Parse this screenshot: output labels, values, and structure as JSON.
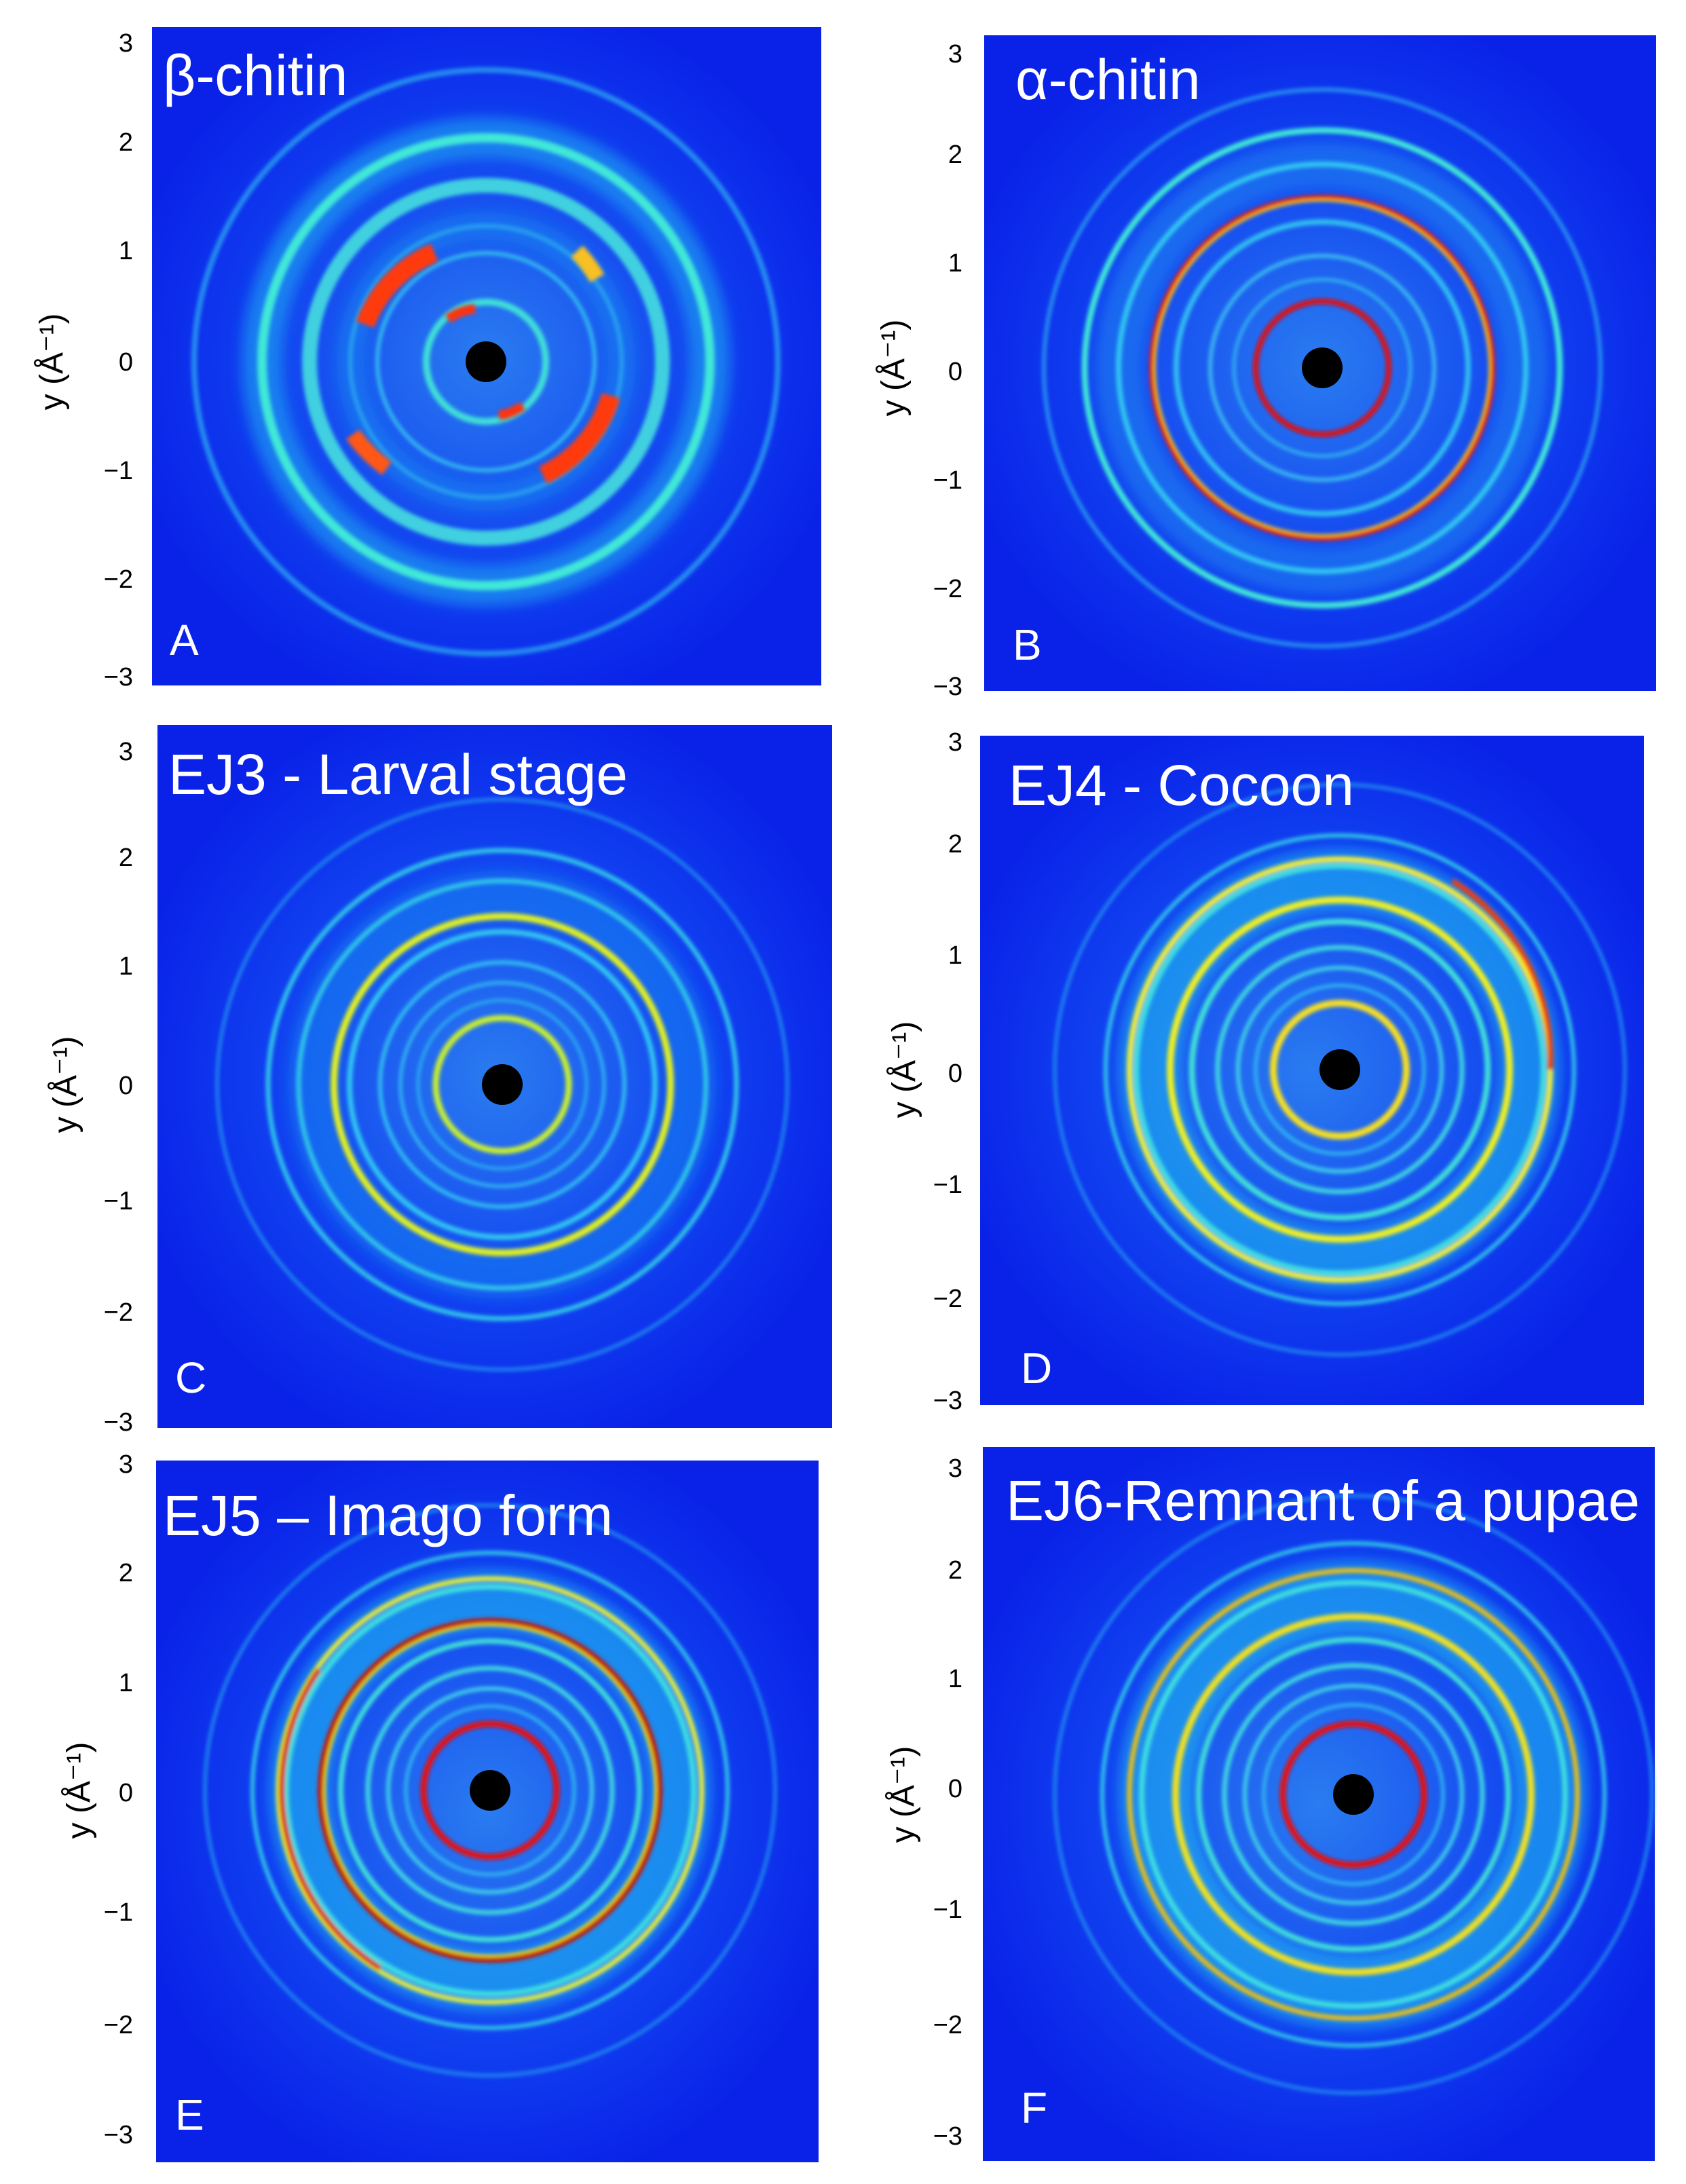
{
  "figure": {
    "panels": [
      {
        "letter": "A",
        "title": "β-chitin",
        "ylabel": "y (Å⁻¹)",
        "yticks": [
          "3",
          "2",
          "1",
          "0",
          "−1",
          "−2",
          "−3"
        ],
        "rings": [
          {
            "r_inv_A": 0.6,
            "color": "#ff3a10"
          },
          {
            "r_inv_A": 1.2,
            "color": "#ff4a10"
          },
          {
            "r_inv_A": 1.65,
            "color": "#40e8d8"
          }
        ]
      },
      {
        "letter": "B",
        "title": "α-chitin",
        "ylabel": "y (Å⁻¹)",
        "yticks": [
          "3",
          "2",
          "1",
          "0",
          "−1",
          "−2",
          "−3"
        ],
        "rings": [
          {
            "r_inv_A": 0.6,
            "color": "#e01010"
          },
          {
            "r_inv_A": 1.3,
            "color": "#e81818"
          },
          {
            "r_inv_A": 1.85,
            "color": "#40e8d8"
          }
        ]
      },
      {
        "letter": "C",
        "title": "EJ3 - Larval stage",
        "ylabel": "y (Å⁻¹)",
        "yticks": [
          "3",
          "2",
          "1",
          "0",
          "−1",
          "−2",
          "−3"
        ],
        "rings": [
          {
            "r_inv_A": 0.6,
            "color": "#c8f030"
          },
          {
            "r_inv_A": 1.3,
            "color": "#e0f020"
          },
          {
            "r_inv_A": 1.8,
            "color": "#30c8e8"
          }
        ]
      },
      {
        "letter": "D",
        "title": "EJ4 - Cocoon",
        "ylabel": "y (Å⁻¹)",
        "yticks": [
          "3",
          "2",
          "1",
          "0",
          "−1",
          "−2",
          "−3"
        ],
        "rings": [
          {
            "r_inv_A": 0.6,
            "color": "#f8e020"
          },
          {
            "r_inv_A": 1.3,
            "color": "#f0f020"
          },
          {
            "r_inv_A": 1.8,
            "color": "#f04010"
          }
        ]
      },
      {
        "letter": "E",
        "title": "EJ5 – Imago form",
        "ylabel": "y (Å⁻¹)",
        "yticks": [
          "3",
          "2",
          "1",
          "0",
          "−1",
          "−2",
          "−3"
        ],
        "rings": [
          {
            "r_inv_A": 0.6,
            "color": "#e81010"
          },
          {
            "r_inv_A": 1.3,
            "color": "#c00808"
          },
          {
            "r_inv_A": 1.8,
            "color": "#d81010"
          }
        ]
      },
      {
        "letter": "F",
        "title": "EJ6-Remnant of a pupae",
        "ylabel": "y (Å⁻¹)",
        "yticks": [
          "3",
          "2",
          "1",
          "0",
          "−1",
          "−2",
          "−3"
        ],
        "rings": [
          {
            "r_inv_A": 0.6,
            "color": "#e81010"
          },
          {
            "r_inv_A": 1.3,
            "color": "#f0e020"
          },
          {
            "r_inv_A": 1.8,
            "color": "#f0c010"
          }
        ]
      }
    ],
    "colors": {
      "background": "#0a28f0",
      "beamstop": "#000000",
      "text": "#ffffff"
    }
  }
}
